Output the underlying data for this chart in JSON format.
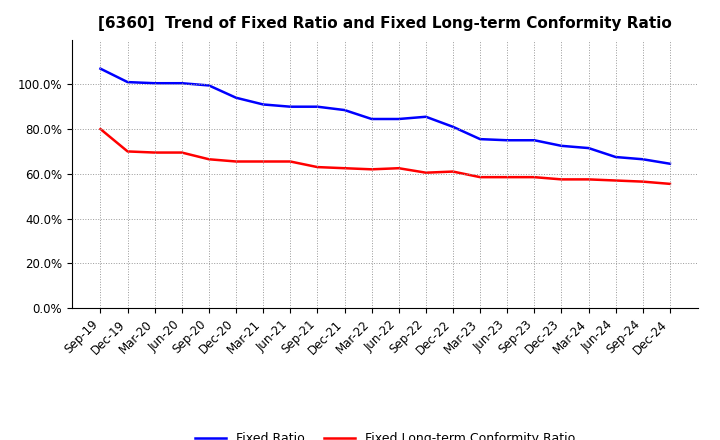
{
  "title": "[6360]  Trend of Fixed Ratio and Fixed Long-term Conformity Ratio",
  "x_labels": [
    "Sep-19",
    "Dec-19",
    "Mar-20",
    "Jun-20",
    "Sep-20",
    "Dec-20",
    "Mar-21",
    "Jun-21",
    "Sep-21",
    "Dec-21",
    "Mar-22",
    "Jun-22",
    "Sep-22",
    "Dec-22",
    "Mar-23",
    "Jun-23",
    "Sep-23",
    "Dec-23",
    "Mar-24",
    "Jun-24",
    "Sep-24",
    "Dec-24"
  ],
  "fixed_ratio": [
    1.07,
    1.01,
    1.005,
    1.005,
    0.995,
    0.94,
    0.91,
    0.9,
    0.9,
    0.885,
    0.845,
    0.845,
    0.855,
    0.81,
    0.755,
    0.75,
    0.75,
    0.725,
    0.715,
    0.675,
    0.665,
    0.645
  ],
  "fixed_lt_ratio": [
    0.8,
    0.7,
    0.695,
    0.695,
    0.665,
    0.655,
    0.655,
    0.655,
    0.63,
    0.625,
    0.62,
    0.625,
    0.605,
    0.61,
    0.585,
    0.585,
    0.585,
    0.575,
    0.575,
    0.57,
    0.565,
    0.555
  ],
  "fixed_ratio_color": "#0000FF",
  "fixed_lt_ratio_color": "#FF0000",
  "ylim": [
    0.0,
    1.2
  ],
  "yticks": [
    0.0,
    0.2,
    0.4,
    0.6,
    0.8,
    1.0
  ],
  "background_color": "#FFFFFF",
  "grid_color": "#999999",
  "legend_fixed_ratio": "Fixed Ratio",
  "legend_fixed_lt_ratio": "Fixed Long-term Conformity Ratio",
  "title_fontsize": 11,
  "tick_label_fontsize": 8.5,
  "ytick_fontsize": 8.5,
  "line_width": 1.8
}
